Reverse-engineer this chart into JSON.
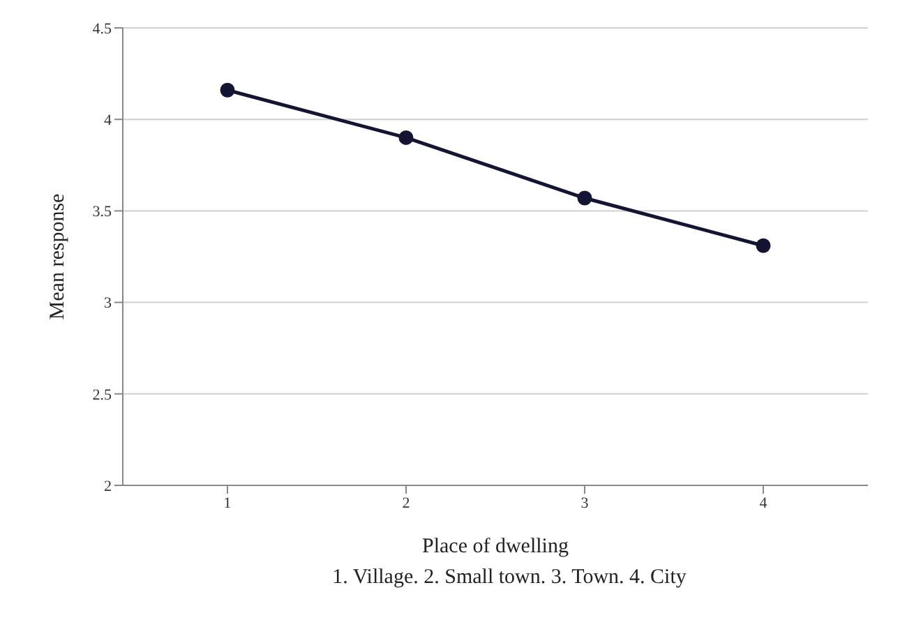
{
  "chart_data": {
    "type": "line",
    "xlabel": "Place of dwelling",
    "ylabel": "Mean response",
    "annotations": [
      "1. Village. 2. Small town. 3. Town. 4. City"
    ],
    "categories": [
      "1",
      "2",
      "3",
      "4"
    ],
    "series": [
      {
        "color": "#141433",
        "values": [
          4.16,
          3.9,
          3.57,
          3.31
        ]
      }
    ],
    "ylim": [
      2,
      4.5
    ],
    "yticks": [
      2,
      2.5,
      3,
      3.5,
      4,
      4.5
    ],
    "grid": "y",
    "marker": "circle",
    "line_style": "solid"
  }
}
